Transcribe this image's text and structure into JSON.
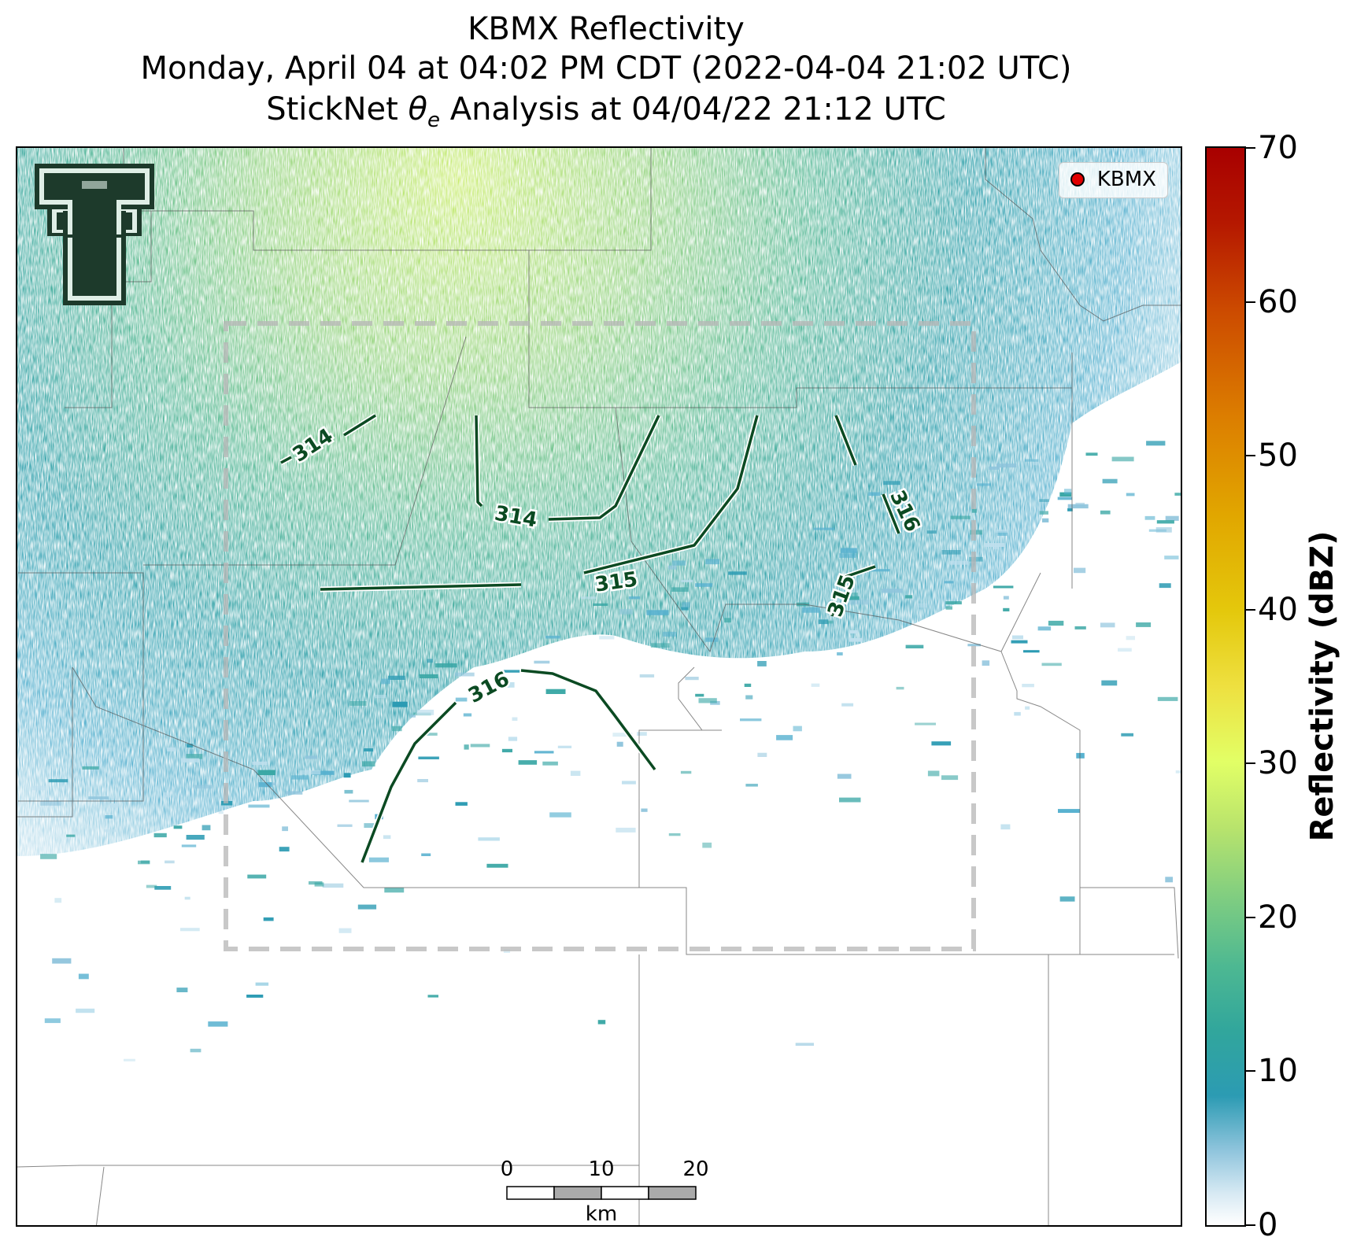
{
  "title": {
    "line1": "KBMX Reflectivity",
    "line2": "Monday, April 04 at 04:02 PM CDT (2022-04-04 21:02 UTC)",
    "line3_prefix": "StickNet ",
    "line3_theta": "θ",
    "line3_sub": "e",
    "line3_suffix": " Analysis at 04/04/22 21:12 UTC"
  },
  "legend": {
    "label": "KBMX",
    "marker_color": "#e00000"
  },
  "colorbar": {
    "label": "Reflectivity (dBZ)",
    "ticks": [
      "0",
      "10",
      "20",
      "30",
      "40",
      "50",
      "60",
      "70"
    ],
    "range": [
      0,
      70
    ]
  },
  "contours": {
    "color": "#0b4a22",
    "labels": [
      "314",
      "314",
      "315",
      "315",
      "316",
      "316"
    ]
  },
  "scalebar": {
    "ticks": [
      "0",
      "10",
      "20"
    ],
    "unit": "km"
  },
  "logo": {
    "name": "Texas Tech Double T",
    "colors": {
      "dark": "#1d3a2b",
      "light": "#dfeee6"
    }
  }
}
